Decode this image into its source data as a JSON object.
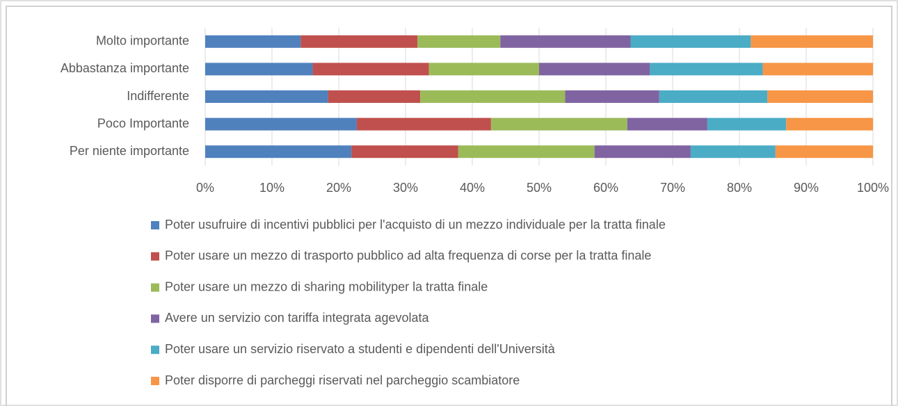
{
  "chart_data": {
    "type": "stacked-barh",
    "categories": [
      "Molto importante",
      "Abbastanza importante",
      "Indifferente",
      "Poco Importante",
      "Per niente importante"
    ],
    "series": [
      {
        "name": "Poter usufruire di incentivi pubblici per l'acquisto di un mezzo individuale per la tratta finale",
        "color": "#4f81bd",
        "values": [
          14.3,
          16.1,
          18.4,
          22.7,
          21.9
        ]
      },
      {
        "name": "Poter usare un mezzo di trasporto pubblico ad alta frequenza di corse per la tratta finale",
        "color": "#c0504d",
        "values": [
          17.5,
          17.4,
          13.8,
          20.1,
          16.0
        ]
      },
      {
        "name": "Poter usare un mezzo di sharing mobilityper la tratta finale",
        "color": "#9bbb59",
        "values": [
          12.4,
          16.5,
          21.7,
          20.4,
          20.4
        ]
      },
      {
        "name": "Avere un servizio con tariffa integrata agevolata",
        "color": "#8064a2",
        "values": [
          19.5,
          16.6,
          14.1,
          12.0,
          14.4
        ]
      },
      {
        "name": "Poter usare un servizio riservato a studenti e dipendenti dell'Università",
        "color": "#4bacc6",
        "values": [
          18.0,
          16.9,
          16.2,
          11.8,
          12.7
        ]
      },
      {
        "name": "Poter disporre di parcheggi riservati nel parcheggio scambiatore",
        "color": "#f79646",
        "values": [
          18.3,
          16.5,
          15.8,
          13.0,
          14.6
        ]
      }
    ],
    "xlim": [
      0,
      100
    ],
    "xticks": [
      {
        "value": 0,
        "label": "0%"
      },
      {
        "value": 10,
        "label": "10%"
      },
      {
        "value": 20,
        "label": "20%"
      },
      {
        "value": 30,
        "label": "30%"
      },
      {
        "value": 40,
        "label": "40%"
      },
      {
        "value": 50,
        "label": "50%"
      },
      {
        "value": 60,
        "label": "60%"
      },
      {
        "value": 70,
        "label": "70%"
      },
      {
        "value": 80,
        "label": "80%"
      },
      {
        "value": 90,
        "label": "90%"
      },
      {
        "value": 100,
        "label": "100%"
      }
    ],
    "grid": true,
    "legend": "bottom"
  }
}
